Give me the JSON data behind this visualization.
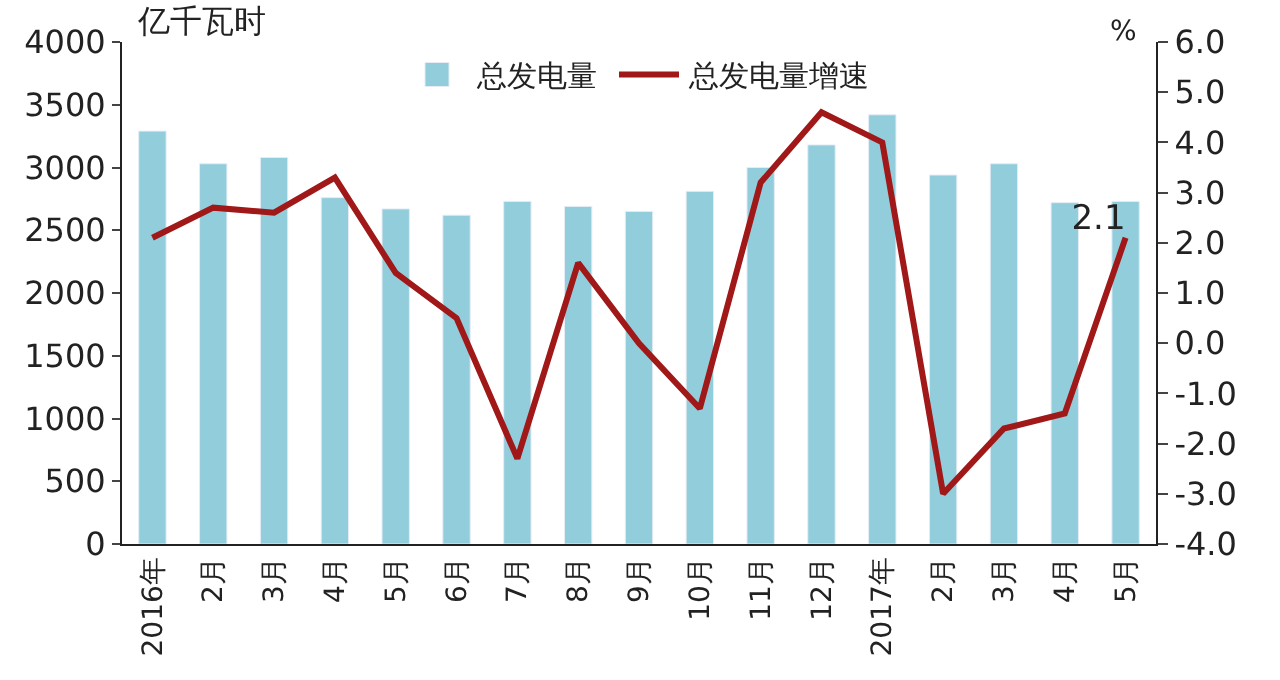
{
  "chart_data": {
    "type": "bar",
    "ylabel": "亿千瓦时",
    "y2label": "%",
    "categories": [
      "2016年",
      "2月",
      "3月",
      "4月",
      "5月",
      "6月",
      "7月",
      "8月",
      "9月",
      "10月",
      "11月",
      "12月",
      "2017年",
      "2月",
      "3月",
      "4月",
      "5月"
    ],
    "series": [
      {
        "name": "总发电量",
        "color": "#92cddc",
        "values": [
          3290,
          3030,
          3080,
          2760,
          2670,
          2620,
          2730,
          2690,
          2650,
          2810,
          3000,
          3180,
          3420,
          2940,
          3030,
          2720,
          2730
        ]
      },
      {
        "name": "总发电量增速",
        "type": "line",
        "axis": "y2",
        "color": "#a01818",
        "values": [
          2.1,
          2.7,
          2.6,
          3.3,
          1.4,
          0.5,
          -2.3,
          1.6,
          0.0,
          -1.3,
          3.2,
          4.6,
          4.0,
          -3.0,
          -1.7,
          -1.4,
          2.1
        ],
        "value_labels": [
          null,
          null,
          null,
          null,
          null,
          null,
          null,
          null,
          null,
          null,
          null,
          null,
          null,
          null,
          null,
          null,
          "2.1"
        ]
      }
    ],
    "ylim": [
      0,
      4000
    ],
    "yticks": [
      0,
      500,
      1000,
      1500,
      2000,
      2500,
      3000,
      3500,
      4000
    ],
    "y2lim": [
      -4.0,
      6.0
    ],
    "y2ticks": [
      {
        "value": -4,
        "label": "-4.0"
      },
      {
        "value": -3,
        "label": "-3.0"
      },
      {
        "value": -2,
        "label": "-2.0"
      },
      {
        "value": -1,
        "label": "-1.0"
      },
      {
        "value": 0,
        "label": "0.0"
      },
      {
        "value": 1,
        "label": "1.0"
      },
      {
        "value": 2,
        "label": "2.0"
      },
      {
        "value": 3,
        "label": "3.0"
      },
      {
        "value": 4,
        "label": "4.0"
      },
      {
        "value": 5,
        "label": "5.0"
      },
      {
        "value": 6,
        "label": "6.0"
      }
    ],
    "legend": "top",
    "marker": "none",
    "line_style": "solid"
  }
}
